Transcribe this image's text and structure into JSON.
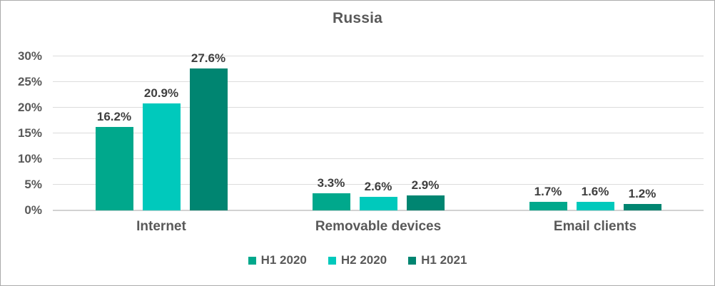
{
  "title": "Russia",
  "chart_data": {
    "type": "bar",
    "title": "Russia",
    "categories": [
      "Internet",
      "Removable devices",
      "Email clients"
    ],
    "series": [
      {
        "name": "H1 2020",
        "color": "#00A88C",
        "values": [
          16.2,
          3.3,
          1.7
        ],
        "labels": [
          "16.2%",
          "3.3%",
          "1.7%"
        ]
      },
      {
        "name": "H2 2020",
        "color": "#00C9BC",
        "values": [
          20.9,
          2.6,
          1.6
        ],
        "labels": [
          "20.9%",
          "2.6%",
          "1.6%"
        ]
      },
      {
        "name": "H1 2021",
        "color": "#008571",
        "values": [
          27.6,
          2.9,
          1.2
        ],
        "labels": [
          "27.6%",
          "2.9%",
          "1.2%"
        ]
      }
    ],
    "xlabel": "",
    "ylabel": "",
    "ylim": [
      0,
      30
    ],
    "ytick_step": 5,
    "yticks": [
      {
        "value": 0,
        "label": "0%"
      },
      {
        "value": 5,
        "label": "5%"
      },
      {
        "value": 10,
        "label": "10%"
      },
      {
        "value": 15,
        "label": "15%"
      },
      {
        "value": 20,
        "label": "20%"
      },
      {
        "value": 25,
        "label": "25%"
      },
      {
        "value": 30,
        "label": "30%"
      }
    ],
    "grid": true,
    "legend_position": "bottom",
    "legend": [
      "H1 2020",
      "H2 2020",
      "H1 2021"
    ]
  },
  "style_colors": {
    "axis_text": "#595959",
    "data_label_text": "#3F3F3F",
    "gridline": "#DCDCDC",
    "axis_line": "#D2D2D2",
    "frame_border": "#ABABAB",
    "background": "#FFFFFF"
  }
}
